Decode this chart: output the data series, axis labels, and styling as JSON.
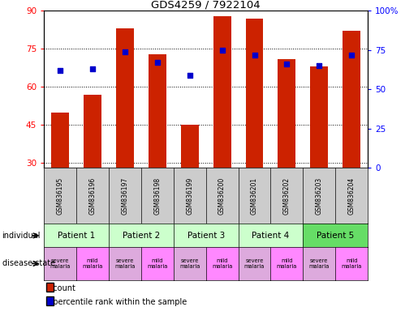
{
  "title": "GDS4259 / 7922104",
  "samples": [
    "GSM836195",
    "GSM836196",
    "GSM836197",
    "GSM836198",
    "GSM836199",
    "GSM836200",
    "GSM836201",
    "GSM836202",
    "GSM836203",
    "GSM836204"
  ],
  "bar_values": [
    50,
    57,
    83,
    73,
    45,
    88,
    87,
    71,
    68,
    82
  ],
  "percentile_values": [
    62,
    63,
    74,
    67,
    59,
    75,
    72,
    66,
    65,
    72
  ],
  "bar_color": "#cc2200",
  "dot_color": "#0000cc",
  "ylim_left": [
    28,
    90
  ],
  "ylim_right": [
    0,
    100
  ],
  "yticks_left": [
    30,
    45,
    60,
    75,
    90
  ],
  "yticks_right": [
    0,
    25,
    50,
    75,
    100
  ],
  "ytick_labels_right": [
    "0",
    "25",
    "50",
    "75",
    "100%"
  ],
  "patients": [
    "Patient 1",
    "Patient 2",
    "Patient 3",
    "Patient 4",
    "Patient 5"
  ],
  "patient_colors": [
    "#ccffcc",
    "#ccffcc",
    "#ccffcc",
    "#ccffcc",
    "#66dd66"
  ],
  "disease_labels": [
    "severe\nmalaria",
    "mild\nmalaria",
    "severe\nmalaria",
    "mild\nmalaria",
    "severe\nmalaria",
    "mild\nmalaria",
    "severe\nmalaria",
    "mild\nmalaria",
    "severe\nmalaria",
    "mild\nmalaria"
  ],
  "disease_severe_color": "#ddaadd",
  "disease_mild_color": "#ff88ff",
  "gsm_bg_color": "#cccccc",
  "bar_color_legend": "#cc2200",
  "dot_color_legend": "#0000cc"
}
